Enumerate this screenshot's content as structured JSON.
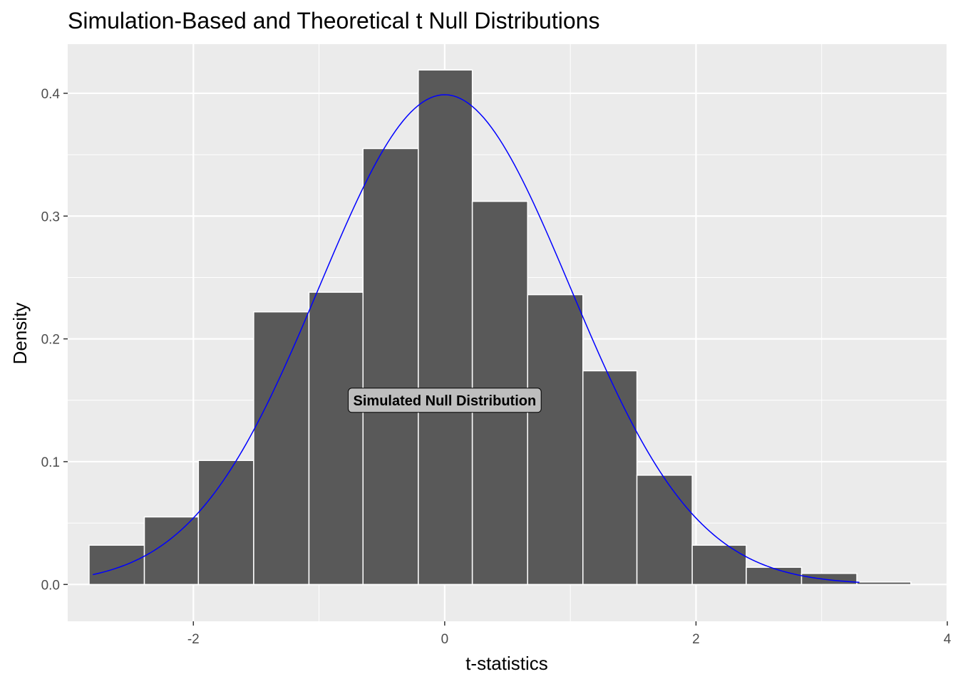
{
  "chart_data": {
    "type": "bar",
    "title": "Simulation-Based and Theoretical t Null Distributions",
    "xlabel": "t-statistics",
    "ylabel": "Density",
    "xlim": [
      -3.0,
      4.0
    ],
    "ylim": [
      -0.03,
      0.44
    ],
    "x_ticks": [
      -2,
      0,
      2,
      4
    ],
    "x_tick_labels": [
      "-2",
      "0",
      "2",
      "4"
    ],
    "y_ticks": [
      0.0,
      0.1,
      0.2,
      0.3,
      0.4
    ],
    "y_tick_labels": [
      "0.0",
      "0.1",
      "0.2",
      "0.3",
      "0.4"
    ],
    "grid": true,
    "bins": [
      {
        "x0": -2.83,
        "x1": -2.39,
        "density": 0.032
      },
      {
        "x0": -2.39,
        "x1": -1.96,
        "density": 0.055
      },
      {
        "x0": -1.96,
        "x1": -1.52,
        "density": 0.101
      },
      {
        "x0": -1.52,
        "x1": -1.08,
        "density": 0.222
      },
      {
        "x0": -1.08,
        "x1": -0.65,
        "density": 0.238
      },
      {
        "x0": -0.65,
        "x1": -0.21,
        "density": 0.355
      },
      {
        "x0": -0.21,
        "x1": 0.22,
        "density": 0.419
      },
      {
        "x0": 0.22,
        "x1": 0.66,
        "density": 0.312
      },
      {
        "x0": 0.66,
        "x1": 1.1,
        "density": 0.236
      },
      {
        "x0": 1.1,
        "x1": 1.53,
        "density": 0.174
      },
      {
        "x0": 1.53,
        "x1": 1.97,
        "density": 0.089
      },
      {
        "x0": 1.97,
        "x1": 2.4,
        "density": 0.032
      },
      {
        "x0": 2.4,
        "x1": 2.84,
        "density": 0.014
      },
      {
        "x0": 2.84,
        "x1": 3.28,
        "density": 0.009
      },
      {
        "x0": 3.28,
        "x1": 3.71,
        "density": 0.002
      }
    ],
    "curve": {
      "distribution": "t",
      "df": 1000,
      "x_range": [
        -2.8,
        3.3
      ],
      "color": "#0000ff"
    },
    "annotation": {
      "text": "Simulated Null Distribution",
      "x": 0.0,
      "y": 0.15
    },
    "colors": {
      "panel": "#ebebeb",
      "grid": "#ffffff",
      "bar_fill": "#595959",
      "bar_outline": "#ffffff",
      "label_fill": "#bebebe"
    }
  }
}
